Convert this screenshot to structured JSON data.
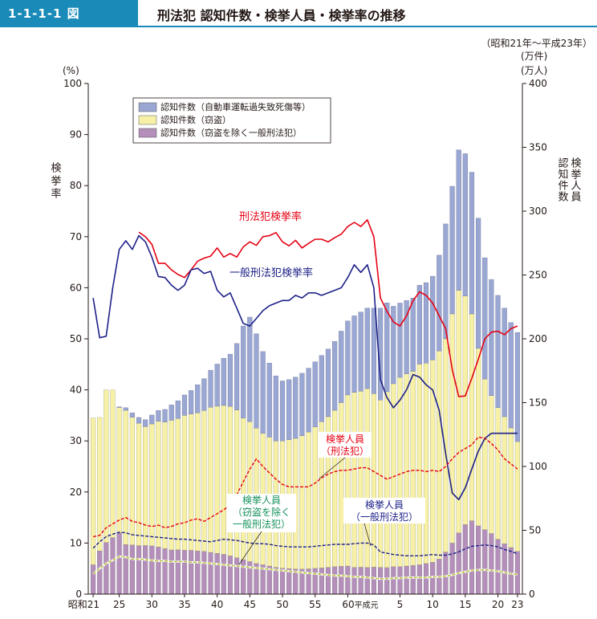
{
  "header": {
    "figure_number": "1-1-1-1 図",
    "title": "刑法犯 認知件数・検挙人員・検挙率の推移"
  },
  "chart_data": {
    "type": "bar",
    "title": "刑法犯 認知件数・検挙人員・検挙率の推移",
    "period_note": "（昭和21年～平成23年）",
    "x_tick_labels": [
      "昭和21",
      "25",
      "30",
      "35",
      "40",
      "45",
      "50",
      "55",
      "60平成元",
      "5",
      "10",
      "15",
      "20",
      "23"
    ],
    "x_tick_index": [
      0,
      4,
      9,
      14,
      19,
      24,
      29,
      34,
      39,
      47,
      52,
      57,
      62,
      65
    ],
    "left_axis": {
      "unit": "(%)",
      "label": "検挙率",
      "ylim": [
        0,
        100
      ],
      "ticks": [
        "0",
        "10",
        "20",
        "30",
        "40",
        "50",
        "60",
        "70",
        "80",
        "90",
        "100"
      ]
    },
    "right_axis": {
      "unit1": "(万件)",
      "unit2": "(万人)",
      "label_col1": "検挙人員",
      "label_col2": "認知件数",
      "ylim": [
        0,
        400
      ],
      "ticks": [
        "0",
        "50",
        "100",
        "150",
        "200",
        "250",
        "300",
        "350",
        "400"
      ]
    },
    "legend": [
      {
        "name": "認知件数（自動車運転過失致死傷等）",
        "color": "#9aa7d3"
      },
      {
        "name": "認知件数（窃盗）",
        "color": "#f7f1a8"
      },
      {
        "name": "認知件数（窃盗を除く一般刑法犯）",
        "color": "#b48fba"
      }
    ],
    "years": [
      "S21",
      "S22",
      "S23",
      "S24",
      "S25",
      "S26",
      "S27",
      "S28",
      "S29",
      "S30",
      "S31",
      "S32",
      "S33",
      "S34",
      "S35",
      "S36",
      "S37",
      "S38",
      "S39",
      "S40",
      "S41",
      "S42",
      "S43",
      "S44",
      "S45",
      "S46",
      "S47",
      "S48",
      "S49",
      "S50",
      "S51",
      "S52",
      "S53",
      "S54",
      "S55",
      "S56",
      "S57",
      "S58",
      "S59",
      "S60",
      "S61",
      "S62",
      "S63",
      "H1",
      "H2",
      "H3",
      "H4",
      "H5",
      "H6",
      "H7",
      "H8",
      "H9",
      "H10",
      "H11",
      "H12",
      "H13",
      "H14",
      "H15",
      "H16",
      "H17",
      "H18",
      "H19",
      "H20",
      "H21",
      "H22",
      "H23"
    ],
    "series": [
      {
        "name": "認知件数（窃盗を除く一般刑法犯）",
        "unit": "万件",
        "values": [
          23.0,
          33.9,
          40.5,
          44.3,
          47.8,
          38.9,
          38.5,
          38.0,
          38.1,
          37.8,
          37.0,
          35.7,
          34.6,
          34.8,
          34.5,
          34.3,
          33.9,
          33.5,
          32.7,
          32.0,
          31.2,
          30.0,
          28.5,
          27.0,
          25.5,
          24.0,
          23.0,
          22.0,
          21.0,
          20.3,
          20.0,
          19.7,
          19.6,
          19.8,
          20.2,
          20.5,
          21.0,
          21.5,
          21.8,
          22.0,
          21.0,
          21.1,
          20.9,
          21.2,
          21.0,
          20.8,
          21.5,
          21.5,
          22.0,
          22.5,
          23.0,
          24.0,
          25.0,
          27.5,
          33.0,
          40.0,
          48.0,
          54.5,
          57.5,
          53.5,
          50.5,
          47.5,
          43.0,
          39.5,
          36.5,
          33.5
        ]
      },
      {
        "name": "認知件数（窃盗）",
        "unit": "万件",
        "values": [
          115.0,
          104.5,
          119.5,
          115.6,
          98.4,
          105.1,
          100.0,
          95.9,
          93.1,
          95.5,
          98.4,
          99.0,
          101.6,
          102.7,
          105.5,
          106.7,
          108.1,
          110.3,
          113.7,
          115.2,
          116.6,
          117.0,
          115.8,
          111.0,
          109.5,
          106.0,
          103.0,
          101.0,
          99.0,
          99.7,
          101.0,
          102.3,
          104.4,
          107.2,
          110.8,
          114.5,
          118.0,
          122.5,
          128.2,
          134.0,
          137.0,
          137.9,
          140.1,
          135.8,
          131.0,
          137.7,
          143.3,
          148.3,
          150.6,
          152.0,
          157.2,
          157.0,
          158.5,
          163.0,
          167.0,
          179.5,
          190.0,
          179.0,
          162.0,
          139.0,
          118.0,
          108.0,
          103.0,
          99.5,
          93.7,
          86.0
        ]
      },
      {
        "name": "認知件数（自動車運転過失致死傷等）",
        "unit": "万件",
        "values": [
          0.0,
          0.0,
          0.0,
          0.0,
          0.5,
          2.0,
          3.5,
          4.5,
          5.5,
          7.0,
          8.5,
          10.0,
          12.0,
          14.0,
          16.0,
          18.5,
          22.0,
          25.0,
          29.0,
          33.0,
          37.0,
          41.0,
          52.0,
          72.0,
          82.0,
          74.0,
          64.0,
          58.0,
          51.0,
          47.0,
          47.0,
          48.0,
          49.0,
          50.0,
          51.0,
          52.0,
          53.0,
          54.0,
          56.0,
          58.0,
          60.0,
          62.0,
          63.0,
          67.0,
          72.0,
          69.7,
          60.7,
          58.2,
          57.4,
          57.5,
          61.8,
          63.0,
          65.5,
          75.0,
          90.0,
          100.0,
          110.0,
          111.5,
          111.0,
          102.0,
          95.0,
          91.0,
          88.0,
          85.0,
          82.5,
          85.5
        ]
      },
      {
        "name": "刑法犯検挙率",
        "unit": "%",
        "values": [
          null,
          null,
          null,
          null,
          null,
          null,
          null,
          70.9,
          70.0,
          68.5,
          64.8,
          64.8,
          63.5,
          62.6,
          62.0,
          63.5,
          65.2,
          65.8,
          66.2,
          67.8,
          66.0,
          66.7,
          66.0,
          68.0,
          69.0,
          68.3,
          70.0,
          70.2,
          70.8,
          69.0,
          68.2,
          69.3,
          67.8,
          68.7,
          69.5,
          69.5,
          69.0,
          69.8,
          70.5,
          72.0,
          72.8,
          72.0,
          73.3,
          70.0,
          58.0,
          55.4,
          53.3,
          52.5,
          54.5,
          57.5,
          59.2,
          58.5,
          57.0,
          54.5,
          52.0,
          44.0,
          38.7,
          38.8,
          42.3,
          46.0,
          50.0,
          51.3,
          51.5,
          50.8,
          52.0,
          52.5
        ]
      },
      {
        "name": "一般刑法犯検挙率",
        "unit": "%",
        "values": [
          58.0,
          50.2,
          50.5,
          60.0,
          67.5,
          69.2,
          67.5,
          70.2,
          69.0,
          66.0,
          62.2,
          62.0,
          60.5,
          59.5,
          60.5,
          63.5,
          63.8,
          62.8,
          63.2,
          59.5,
          58.2,
          59.0,
          56.0,
          53.0,
          52.5,
          54.0,
          55.5,
          56.5,
          57.0,
          57.5,
          57.5,
          58.5,
          58.0,
          59.0,
          59.0,
          58.5,
          59.0,
          59.5,
          60.0,
          62.0,
          64.5,
          63.0,
          64.5,
          60.0,
          42.0,
          38.5,
          36.5,
          38.0,
          40.0,
          43.0,
          42.5,
          41.0,
          40.0,
          36.0,
          27.5,
          19.8,
          18.5,
          20.8,
          24.5,
          28.0,
          30.5,
          31.5,
          31.5,
          31.5,
          31.5,
          31.5
        ]
      },
      {
        "name": "検挙人員（刑法犯）",
        "unit": "万人",
        "values": [
          45.0,
          46.0,
          52.0,
          55.0,
          58.0,
          60.0,
          57.0,
          56.0,
          54.0,
          53.0,
          54.0,
          52.0,
          53.0,
          55.0,
          56.0,
          58.0,
          59.0,
          57.0,
          60.0,
          63.0,
          66.0,
          70.0,
          78.0,
          88.0,
          98.0,
          106.0,
          100.0,
          95.0,
          90.0,
          86.0,
          84.0,
          84.0,
          84.0,
          84.0,
          87.0,
          91.0,
          94.0,
          96.0,
          97.0,
          97.0,
          98.0,
          99.0,
          99.0,
          96.0,
          93.0,
          90.0,
          92.0,
          94.0,
          96.0,
          97.0,
          97.0,
          96.0,
          97.0,
          96.0,
          100.0,
          106.0,
          111.0,
          114.0,
          117.0,
          123.0,
          122.0,
          118.0,
          113.0,
          106.0,
          102.0,
          98.0
        ]
      },
      {
        "name": "検挙人員（一般刑法犯）",
        "unit": "万人",
        "values": [
          36.0,
          41.0,
          45.0,
          47.0,
          48.5,
          48.0,
          46.5,
          46.0,
          45.5,
          45.0,
          44.5,
          44.0,
          43.5,
          43.0,
          43.0,
          42.5,
          42.0,
          41.5,
          41.0,
          42.0,
          43.0,
          42.5,
          42.0,
          41.0,
          40.0,
          39.5,
          39.5,
          39.0,
          38.0,
          37.5,
          37.0,
          37.0,
          37.0,
          37.0,
          37.5,
          38.0,
          38.5,
          39.0,
          39.0,
          39.0,
          39.5,
          40.0,
          40.0,
          38.5,
          33.0,
          32.0,
          31.0,
          30.5,
          30.0,
          30.0,
          30.0,
          30.5,
          31.0,
          30.5,
          30.5,
          31.5,
          33.0,
          35.5,
          37.5,
          38.0,
          38.5,
          38.0,
          37.0,
          35.0,
          33.5,
          31.5
        ]
      },
      {
        "name": "検挙人員（窃盗を除く一般刑法犯）",
        "unit": "万人",
        "values": [
          16.0,
          20.0,
          24.0,
          26.5,
          29.5,
          29.0,
          27.5,
          27.5,
          27.0,
          26.5,
          26.0,
          26.0,
          25.5,
          25.5,
          25.5,
          25.0,
          25.0,
          24.5,
          24.0,
          23.5,
          23.0,
          22.5,
          22.0,
          21.5,
          21.0,
          20.5,
          20.0,
          19.5,
          19.0,
          18.5,
          18.0,
          17.5,
          17.0,
          16.5,
          16.0,
          15.5,
          15.0,
          14.5,
          14.5,
          14.0,
          13.5,
          13.5,
          13.0,
          12.5,
          12.0,
          12.0,
          12.5,
          12.5,
          13.0,
          13.0,
          13.0,
          13.0,
          13.5,
          13.5,
          14.0,
          15.0,
          16.5,
          17.5,
          18.5,
          19.0,
          19.0,
          18.5,
          18.0,
          17.0,
          16.0,
          15.5
        ]
      }
    ],
    "annotations": {
      "keikyoritsu_keihohan": "刑法犯検挙率",
      "keikyoritsu_ippan": "一般刑法犯検挙率",
      "jinin_keihohan_1": "検挙人員",
      "jinin_keihohan_2": "（刑法犯）",
      "jinin_settou_1": "検挙人員",
      "jinin_settou_2": "（窃盗を除く",
      "jinin_settou_3": "一般刑法犯）",
      "jinin_ippan_1": "検挙人員",
      "jinin_ippan_2": "（一般刑法犯）"
    },
    "colors": {
      "traffic": "#9aa7d3",
      "theft": "#f7f1a8",
      "other": "#b48fba",
      "rate_keihohan": "#e60012",
      "rate_ippan": "#1d2088",
      "arrest_settou": "#16925c",
      "arrest_settou_line": "#b9c43c",
      "accent": "#1a8bb8"
    }
  }
}
